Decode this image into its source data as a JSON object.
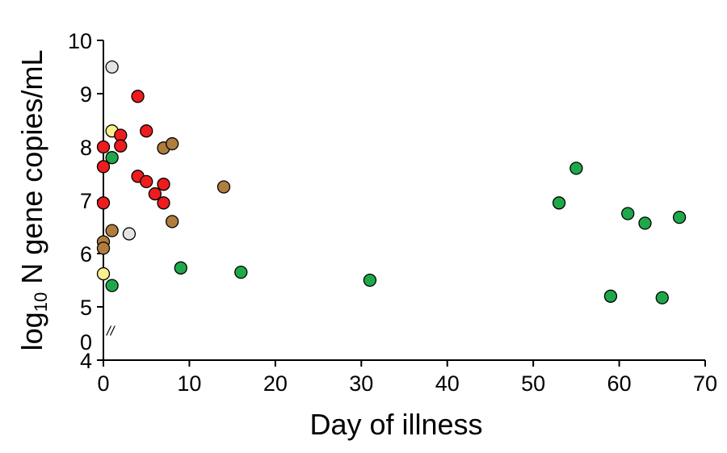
{
  "chart_data": {
    "type": "scatter",
    "title": "",
    "xlabel": "Day of illness",
    "ylabel_main": "log",
    "ylabel_sub": "10",
    "ylabel_rest": " N gene copies/mL",
    "xlim": [
      0,
      70
    ],
    "ylim": [
      4,
      10
    ],
    "xticks": [
      "0",
      "10",
      "20",
      "30",
      "40",
      "50",
      "60",
      "70"
    ],
    "yticks": [
      "4",
      "5",
      "6",
      "7",
      "8",
      "9",
      "10"
    ],
    "y_break_label": "0",
    "axis_break_mark": "//",
    "grid": false,
    "colors": {
      "red": "#ee1c1c",
      "green": "#1fa84a",
      "brown": "#b07d3e",
      "yellow": "#fdf08a",
      "gray": "#e4e4e4"
    },
    "points": [
      {
        "x": 1,
        "y": 9.5,
        "color": "gray"
      },
      {
        "x": 3,
        "y": 6.37,
        "color": "gray"
      },
      {
        "x": 1,
        "y": 8.3,
        "color": "yellow"
      },
      {
        "x": 0,
        "y": 5.62,
        "color": "yellow"
      },
      {
        "x": 0,
        "y": 8.0,
        "color": "red"
      },
      {
        "x": 0,
        "y": 7.63,
        "color": "red"
      },
      {
        "x": 0,
        "y": 6.95,
        "color": "red"
      },
      {
        "x": 2,
        "y": 8.22,
        "color": "red"
      },
      {
        "x": 2,
        "y": 8.02,
        "color": "red"
      },
      {
        "x": 4,
        "y": 8.95,
        "color": "red"
      },
      {
        "x": 4,
        "y": 7.45,
        "color": "red"
      },
      {
        "x": 5,
        "y": 8.3,
        "color": "red"
      },
      {
        "x": 5,
        "y": 7.35,
        "color": "red"
      },
      {
        "x": 6,
        "y": 7.12,
        "color": "red"
      },
      {
        "x": 7,
        "y": 7.3,
        "color": "red"
      },
      {
        "x": 7,
        "y": 6.95,
        "color": "red"
      },
      {
        "x": 0,
        "y": 6.22,
        "color": "brown"
      },
      {
        "x": 0,
        "y": 6.1,
        "color": "brown"
      },
      {
        "x": 1,
        "y": 6.43,
        "color": "brown"
      },
      {
        "x": 7,
        "y": 7.98,
        "color": "brown"
      },
      {
        "x": 8,
        "y": 8.06,
        "color": "brown"
      },
      {
        "x": 8,
        "y": 6.6,
        "color": "brown"
      },
      {
        "x": 14,
        "y": 7.25,
        "color": "brown"
      },
      {
        "x": 1,
        "y": 7.8,
        "color": "green"
      },
      {
        "x": 1,
        "y": 5.4,
        "color": "green"
      },
      {
        "x": 9,
        "y": 5.73,
        "color": "green"
      },
      {
        "x": 16,
        "y": 5.65,
        "color": "green"
      },
      {
        "x": 31,
        "y": 5.5,
        "color": "green"
      },
      {
        "x": 53,
        "y": 6.95,
        "color": "green"
      },
      {
        "x": 55,
        "y": 7.6,
        "color": "green"
      },
      {
        "x": 59,
        "y": 5.2,
        "color": "green"
      },
      {
        "x": 61,
        "y": 6.75,
        "color": "green"
      },
      {
        "x": 63,
        "y": 6.57,
        "color": "green"
      },
      {
        "x": 65,
        "y": 5.17,
        "color": "green"
      },
      {
        "x": 67,
        "y": 6.68,
        "color": "green"
      }
    ]
  }
}
